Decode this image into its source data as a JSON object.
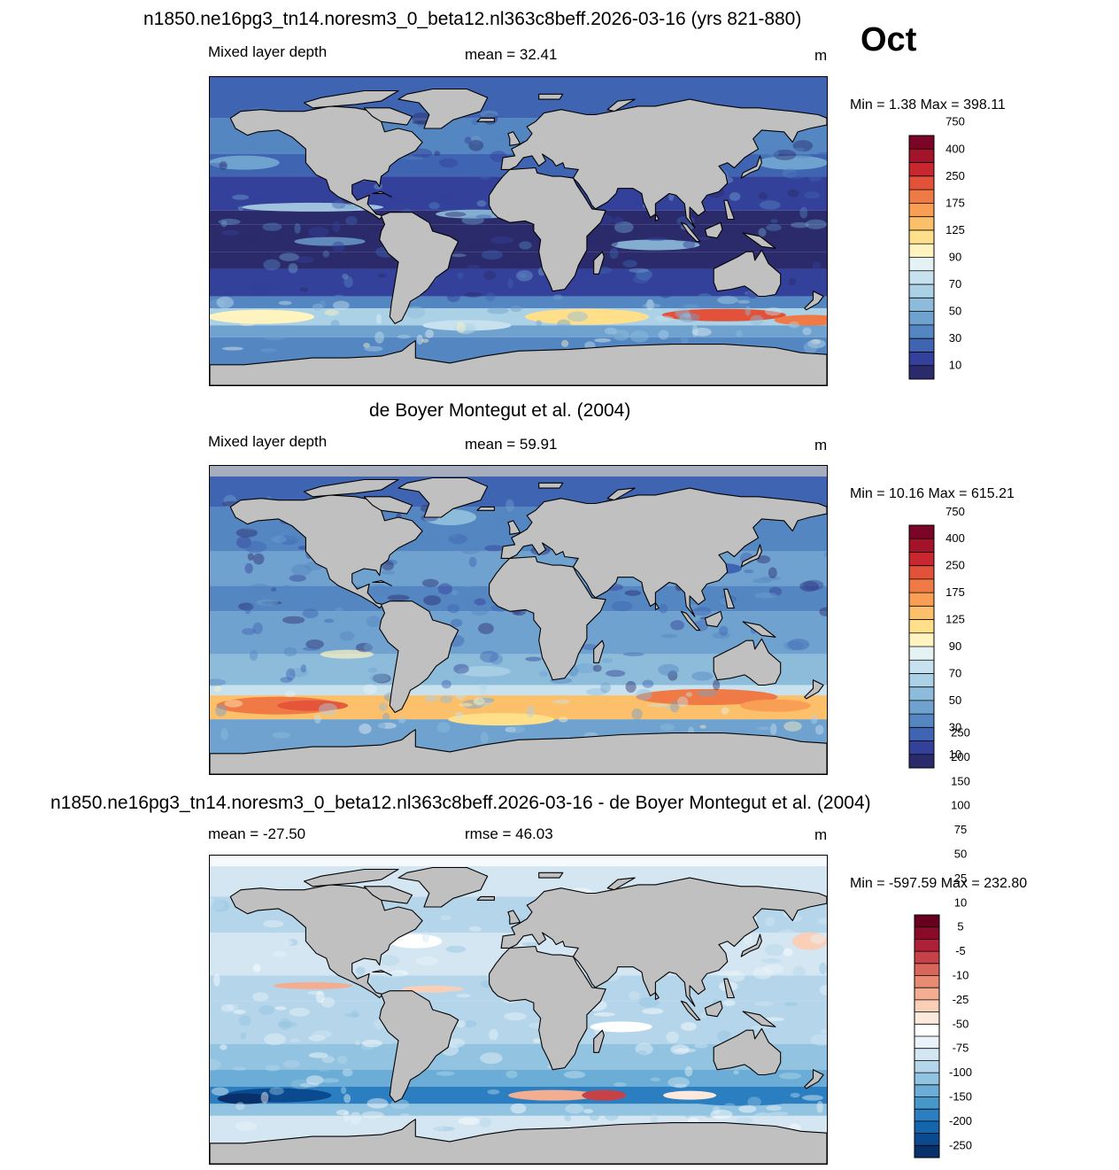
{
  "month": "Oct",
  "panels": [
    {
      "title": "n1850.ne16pg3_tn14.noresm3_0_beta12.nl363c8beff.2026-03-16 (yrs 821-880)",
      "left_label": "Mixed layer depth",
      "center_label": "mean =  32.41",
      "units": "m",
      "minmax": "Min =    1.38 Max = 398.11",
      "colorbar": {
        "colors": [
          "#2b2b6b",
          "#34419a",
          "#3e64b2",
          "#5486c1",
          "#6fa2cf",
          "#8dbcdb",
          "#abd1e6",
          "#c7e2ee",
          "#e4f2f3",
          "#fff3c0",
          "#ffdf8a",
          "#fdc06a",
          "#f99f55",
          "#f07a45",
          "#e2513a",
          "#c9272f",
          "#a3142a",
          "#7a0526"
        ],
        "labels": [
          "10",
          "30",
          "50",
          "70",
          "90",
          "125",
          "175",
          "250",
          "400",
          "750"
        ]
      },
      "palette": "seq"
    },
    {
      "title": "de Boyer Montegut et al. (2004)",
      "left_label": "Mixed layer depth",
      "center_label": "mean =  59.91",
      "units": "m",
      "minmax": "Min =  10.16 Max = 615.21",
      "colorbar": {
        "colors": [
          "#2b2b6b",
          "#34419a",
          "#3e64b2",
          "#5486c1",
          "#6fa2cf",
          "#8dbcdb",
          "#abd1e6",
          "#c7e2ee",
          "#e4f2f3",
          "#fff3c0",
          "#ffdf8a",
          "#fdc06a",
          "#f99f55",
          "#f07a45",
          "#e2513a",
          "#c9272f",
          "#a3142a",
          "#7a0526"
        ],
        "labels": [
          "10",
          "30",
          "50",
          "70",
          "90",
          "125",
          "175",
          "250",
          "400",
          "750"
        ]
      },
      "palette": "seq"
    },
    {
      "title": "n1850.ne16pg3_tn14.noresm3_0_beta12.nl363c8beff.2026-03-16 - de Boyer Montegut et al. (2004)",
      "left_label": "mean = -27.50",
      "center_label": "rmse =  46.03",
      "units": "m",
      "minmax": "Min = -597.59 Max = 232.80",
      "colorbar": {
        "colors": [
          "#08306b",
          "#0b4a8f",
          "#1565ad",
          "#2b7fc0",
          "#4698cb",
          "#6badd6",
          "#92c3e0",
          "#b5d6ea",
          "#d3e6f2",
          "#eaf3f9",
          "#ffffff",
          "#fde8dc",
          "#f9cfb8",
          "#f3ae92",
          "#e88b72",
          "#d9665a",
          "#c74148",
          "#ae1f38",
          "#8a0a2a",
          "#67001f"
        ],
        "labels": [
          "-250",
          "-200",
          "-150",
          "-100",
          "-75",
          "-50",
          "-25",
          "-10",
          "-5",
          "5",
          "10",
          "25",
          "50",
          "75",
          "100",
          "150",
          "200",
          "250"
        ]
      },
      "palette": "div"
    }
  ]
}
